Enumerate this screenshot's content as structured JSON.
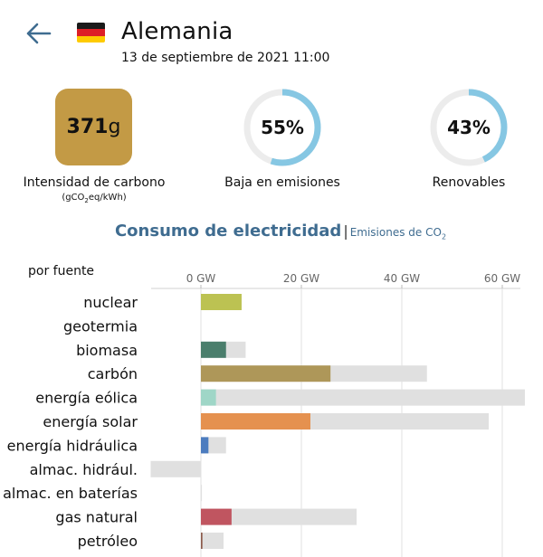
{
  "header": {
    "country": "Alemania",
    "datetime": "13 de septiembre de 2021 11:00",
    "back_icon": "arrow-left-icon",
    "flag_icon": "flag-germany-icon",
    "flag_colors": [
      "#1a1a1a",
      "#dd1f26",
      "#fecb00"
    ]
  },
  "stats": {
    "carbon_intensity": {
      "value": "371",
      "unit_suffix": "g",
      "label": "Intensidad de carbono",
      "unit_label": "(gCO",
      "unit_sub": "2",
      "unit_rest": "eq/kWh)",
      "color": "#c39a45"
    },
    "low_emission": {
      "value": "55%",
      "fraction": 0.55,
      "label": "Baja en emisiones",
      "color": "#86c7e3"
    },
    "renewables": {
      "value": "43%",
      "fraction": 0.43,
      "label": "Renovables",
      "color": "#86c7e3"
    }
  },
  "tabs": {
    "consumo": "Consumo de electricidad",
    "separator": "|",
    "emisiones": "Emisiones de CO",
    "emisiones_sub": "2"
  },
  "chart_data": {
    "type": "bar",
    "orientation": "horizontal",
    "title": "por fuente",
    "x_ticks": [
      "0 GW",
      "20 GW",
      "40 GW",
      "60 GW"
    ],
    "xlim": [
      -10,
      65
    ],
    "categories": [
      "nuclear",
      "geotermia",
      "biomasa",
      "carbón",
      "energía eólica",
      "energía solar",
      "energía hidráulica",
      "almac. hidrául.",
      "almac. en baterías",
      "gas natural",
      "petróleo"
    ],
    "series": [
      {
        "values": [
          8.1,
          0,
          5,
          25.8,
          3,
          21.8,
          1.5,
          0,
          0,
          6.1,
          0.3
        ],
        "colors": [
          "#bcc252",
          "#cccccc",
          "#4a7e6c",
          "#ae9759",
          "#9fd6c7",
          "#e5914f",
          "#4c7cbf",
          "#6fa0d8",
          "#888888",
          "#c05560",
          "#8b5a4b"
        ]
      },
      {
        "values": [
          8.1,
          0,
          8.9,
          45,
          64.5,
          57.3,
          5,
          -10,
          0.2,
          31,
          4.5
        ],
        "color": "#e0e0e0"
      }
    ],
    "grid": true
  }
}
